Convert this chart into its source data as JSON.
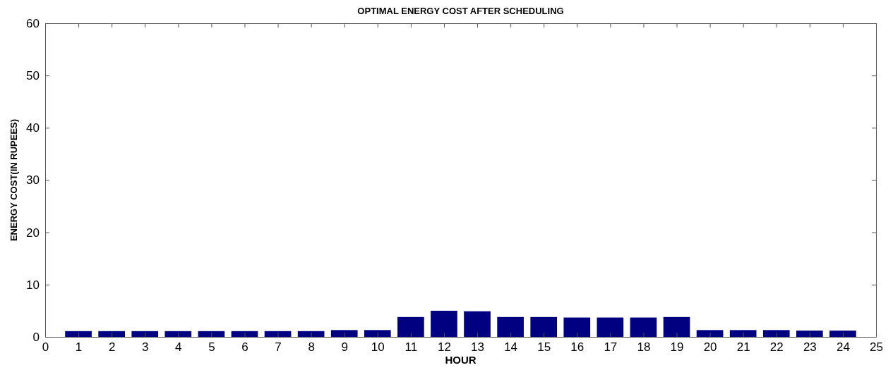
{
  "chart_data": {
    "type": "bar",
    "title": "OPTIMAL ENERGY COST AFTER SCHEDULING",
    "xlabel": "HOUR",
    "ylabel": "ENERGY COST(IN RUPEES)",
    "x": [
      1,
      2,
      3,
      4,
      5,
      6,
      7,
      8,
      9,
      10,
      11,
      12,
      13,
      14,
      15,
      16,
      17,
      18,
      19,
      20,
      21,
      22,
      23,
      24
    ],
    "values": [
      1.1,
      1.1,
      1.1,
      1.1,
      1.1,
      1.1,
      1.1,
      1.1,
      1.3,
      1.3,
      3.8,
      5.0,
      4.9,
      3.8,
      3.8,
      3.7,
      3.7,
      3.7,
      3.8,
      1.3,
      1.3,
      1.3,
      1.2,
      1.2
    ],
    "color": "#000080",
    "xlim": [
      0,
      25
    ],
    "xticks": [
      0,
      1,
      2,
      3,
      4,
      5,
      6,
      7,
      8,
      9,
      10,
      11,
      12,
      13,
      14,
      15,
      16,
      17,
      18,
      19,
      20,
      21,
      22,
      23,
      24,
      25
    ],
    "ylim": [
      0,
      60
    ],
    "yticks": [
      0,
      10,
      20,
      30,
      40,
      50,
      60
    ],
    "grid": false
  }
}
